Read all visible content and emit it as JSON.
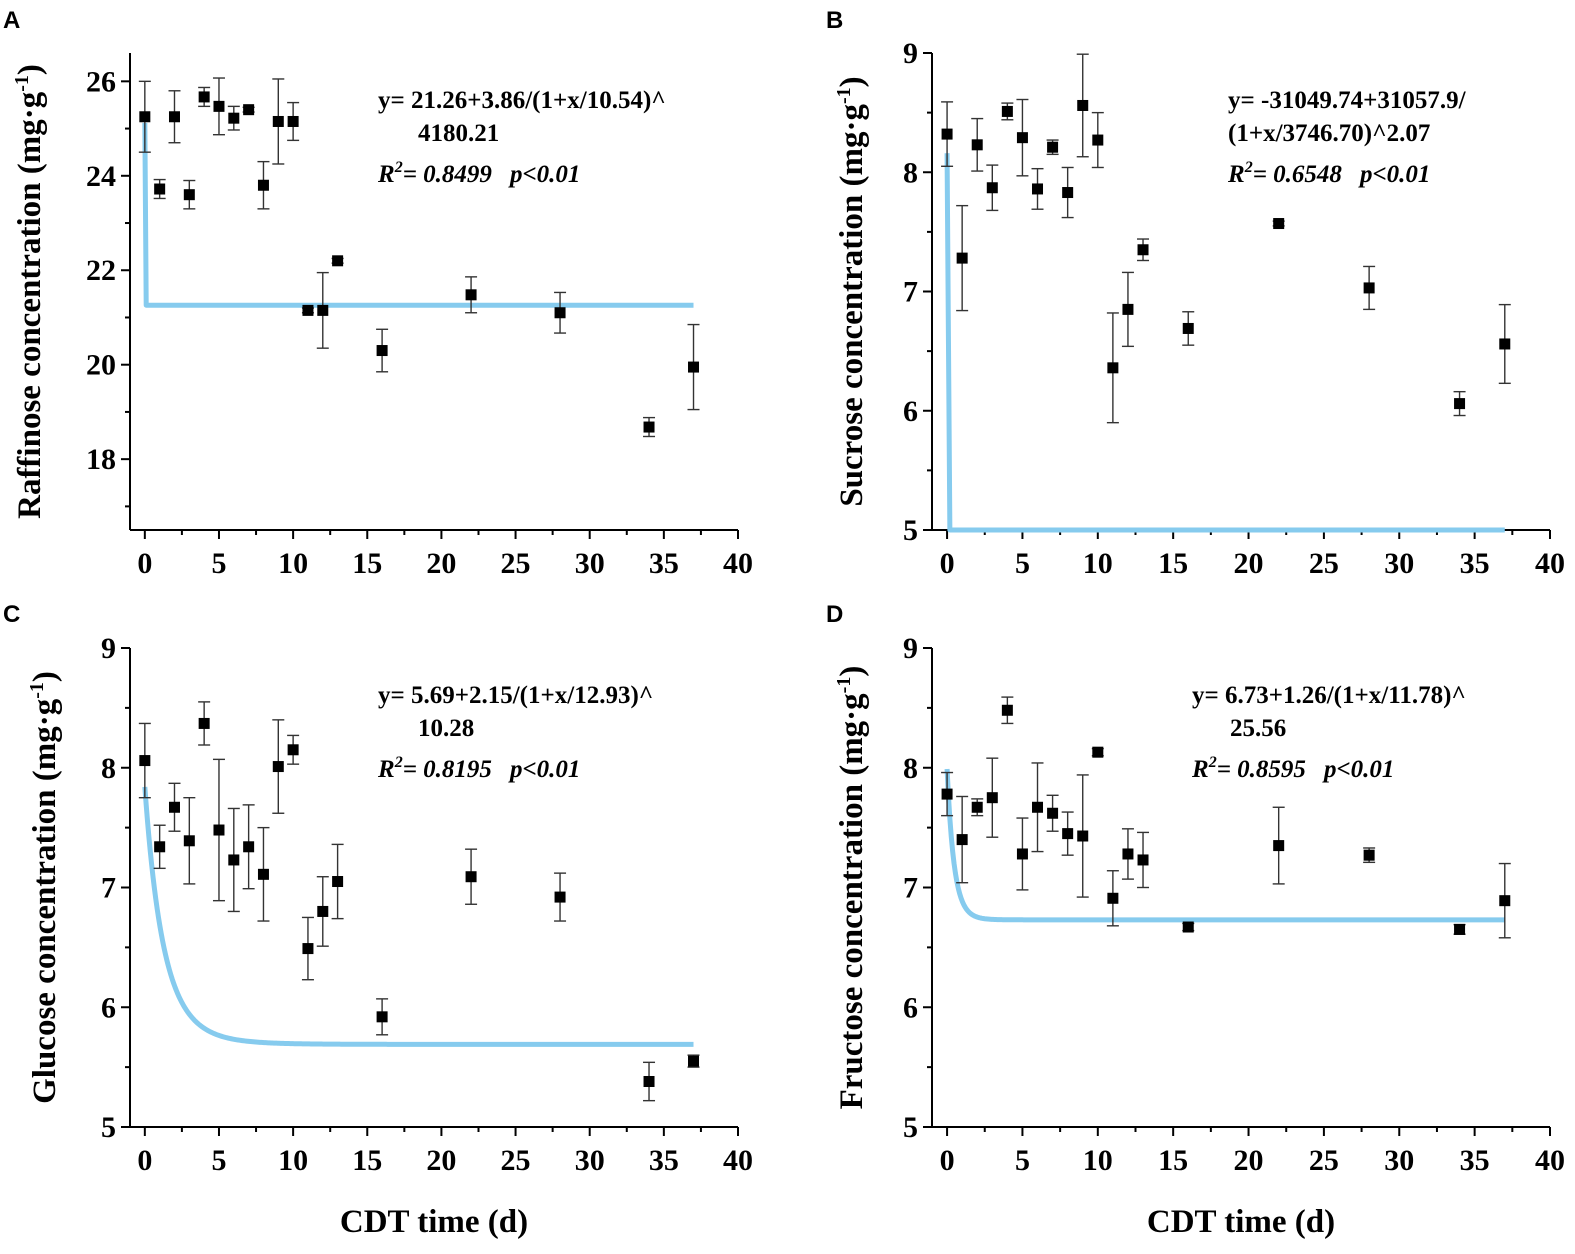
{
  "chart_data": [
    {
      "type": "scatter",
      "panel": "A",
      "ylabel": "Raffinose concentration (mg·g",
      "ylabel_sup": "-1",
      "ylabel_end": ")",
      "xlabel": "",
      "xlim": [
        -1,
        40
      ],
      "ylim": [
        16.5,
        26.6
      ],
      "xticks": [
        0,
        5,
        10,
        15,
        20,
        25,
        30,
        35,
        40
      ],
      "yticks": [
        18,
        20,
        22,
        24,
        26
      ],
      "xtick_labels": [
        "0",
        "5",
        "10",
        "15",
        "20",
        "25",
        "30",
        "35",
        "40"
      ],
      "ytick_labels": [
        "18",
        "20",
        "22",
        "24",
        "26"
      ],
      "fit_color": "#86cbee",
      "equation_line1": "y= 21.26+3.86/(1+x/10.54)^",
      "equation_line2": "4180.21",
      "r2_label": "R",
      "r2_sup": "2",
      "r2_value": "= 0.8499",
      "p_value": "p<0.01",
      "fit": {
        "A": 21.26,
        "B": 3.86,
        "c": 10.54,
        "n": 4180.21,
        "xmax": 37
      },
      "points": [
        {
          "x": 0,
          "y": 25.25,
          "err": 0.75
        },
        {
          "x": 1,
          "y": 23.72,
          "err": 0.2
        },
        {
          "x": 2,
          "y": 25.25,
          "err": 0.55
        },
        {
          "x": 3,
          "y": 23.6,
          "err": 0.3
        },
        {
          "x": 4,
          "y": 25.67,
          "err": 0.2
        },
        {
          "x": 5,
          "y": 25.47,
          "err": 0.6
        },
        {
          "x": 6,
          "y": 25.22,
          "err": 0.25
        },
        {
          "x": 7,
          "y": 25.4,
          "err": 0.05
        },
        {
          "x": 8,
          "y": 23.8,
          "err": 0.5
        },
        {
          "x": 9,
          "y": 25.15,
          "err": 0.9
        },
        {
          "x": 10,
          "y": 25.15,
          "err": 0.4
        },
        {
          "x": 11,
          "y": 21.15,
          "err": 0.05
        },
        {
          "x": 12,
          "y": 21.15,
          "err": 0.8
        },
        {
          "x": 13,
          "y": 22.2,
          "err": 0.05
        },
        {
          "x": 16,
          "y": 20.3,
          "err": 0.45
        },
        {
          "x": 22,
          "y": 21.48,
          "err": 0.38
        },
        {
          "x": 28,
          "y": 21.1,
          "err": 0.43
        },
        {
          "x": 34,
          "y": 18.68,
          "err": 0.2
        },
        {
          "x": 37,
          "y": 19.95,
          "err": 0.9
        }
      ]
    },
    {
      "type": "scatter",
      "panel": "B",
      "ylabel": "Sucrose concentration (mg·g",
      "ylabel_sup": "-1",
      "ylabel_end": ")",
      "xlabel": "",
      "xlim": [
        -1,
        40
      ],
      "ylim": [
        5,
        9
      ],
      "xticks": [
        0,
        5,
        10,
        15,
        20,
        25,
        30,
        35,
        40
      ],
      "yticks": [
        5,
        6,
        7,
        8,
        9
      ],
      "xtick_labels": [
        "0",
        "5",
        "10",
        "15",
        "20",
        "25",
        "30",
        "35",
        "40"
      ],
      "ytick_labels": [
        "5",
        "6",
        "7",
        "8",
        "9"
      ],
      "fit_color": "#86cbee",
      "equation_line1": "y= -31049.74+31057.9/",
      "equation_line2": "(1+x/3746.70)^2.07",
      "r2_label": "R",
      "r2_sup": "2",
      "r2_value": "= 0.6548",
      "p_value": "p<0.01",
      "fit": {
        "A": -31049.74,
        "B": 31057.9,
        "c": 3746.7,
        "n": 2.07,
        "xmax": 37
      },
      "points": [
        {
          "x": 0,
          "y": 8.32,
          "err": 0.27
        },
        {
          "x": 1,
          "y": 7.28,
          "err": 0.44
        },
        {
          "x": 2,
          "y": 8.23,
          "err": 0.22
        },
        {
          "x": 3,
          "y": 7.87,
          "err": 0.19
        },
        {
          "x": 4,
          "y": 8.51,
          "err": 0.07
        },
        {
          "x": 5,
          "y": 8.29,
          "err": 0.32
        },
        {
          "x": 6,
          "y": 7.86,
          "err": 0.17
        },
        {
          "x": 7,
          "y": 8.21,
          "err": 0.06
        },
        {
          "x": 8,
          "y": 7.83,
          "err": 0.21
        },
        {
          "x": 9,
          "y": 8.56,
          "err": 0.43
        },
        {
          "x": 10,
          "y": 8.27,
          "err": 0.23
        },
        {
          "x": 11,
          "y": 6.36,
          "err": 0.46
        },
        {
          "x": 12,
          "y": 6.85,
          "err": 0.31
        },
        {
          "x": 13,
          "y": 7.35,
          "err": 0.09
        },
        {
          "x": 16,
          "y": 6.69,
          "err": 0.14
        },
        {
          "x": 22,
          "y": 7.57,
          "err": 0.02
        },
        {
          "x": 28,
          "y": 7.03,
          "err": 0.18
        },
        {
          "x": 34,
          "y": 6.06,
          "err": 0.1
        },
        {
          "x": 37,
          "y": 6.56,
          "err": 0.33
        }
      ]
    },
    {
      "type": "scatter",
      "panel": "C",
      "ylabel": "Glucose concentration (mg·g",
      "ylabel_sup": "-1",
      "ylabel_end": ")",
      "xlabel": "CDT time (d)",
      "xlim": [
        -1,
        40
      ],
      "ylim": [
        5,
        9
      ],
      "xticks": [
        0,
        5,
        10,
        15,
        20,
        25,
        30,
        35,
        40
      ],
      "yticks": [
        5,
        6,
        7,
        8,
        9
      ],
      "xtick_labels": [
        "0",
        "5",
        "10",
        "15",
        "20",
        "25",
        "30",
        "35",
        "40"
      ],
      "ytick_labels": [
        "5",
        "6",
        "7",
        "8",
        "9"
      ],
      "fit_color": "#86cbee",
      "equation_line1": "y= 5.69+2.15/(1+x/12.93)^",
      "equation_line2": "10.28",
      "r2_label": "R",
      "r2_sup": "2",
      "r2_value": "= 0.8195",
      "p_value": "p<0.01",
      "fit": {
        "A": 5.69,
        "B": 2.15,
        "c": 12.93,
        "n": 10.28,
        "xmax": 37
      },
      "points": [
        {
          "x": 0,
          "y": 8.06,
          "err": 0.31
        },
        {
          "x": 1,
          "y": 7.34,
          "err": 0.18
        },
        {
          "x": 2,
          "y": 7.67,
          "err": 0.2
        },
        {
          "x": 3,
          "y": 7.39,
          "err": 0.36
        },
        {
          "x": 4,
          "y": 8.37,
          "err": 0.18
        },
        {
          "x": 5,
          "y": 7.48,
          "err": 0.59
        },
        {
          "x": 6,
          "y": 7.23,
          "err": 0.43
        },
        {
          "x": 7,
          "y": 7.34,
          "err": 0.35
        },
        {
          "x": 8,
          "y": 7.11,
          "err": 0.39
        },
        {
          "x": 9,
          "y": 8.01,
          "err": 0.39
        },
        {
          "x": 10,
          "y": 8.15,
          "err": 0.12
        },
        {
          "x": 11,
          "y": 6.49,
          "err": 0.26
        },
        {
          "x": 12,
          "y": 6.8,
          "err": 0.29
        },
        {
          "x": 13,
          "y": 7.05,
          "err": 0.31
        },
        {
          "x": 16,
          "y": 5.92,
          "err": 0.15
        },
        {
          "x": 22,
          "y": 7.09,
          "err": 0.23
        },
        {
          "x": 28,
          "y": 6.92,
          "err": 0.2
        },
        {
          "x": 34,
          "y": 5.38,
          "err": 0.16
        },
        {
          "x": 37,
          "y": 5.55,
          "err": 0.05
        }
      ]
    },
    {
      "type": "scatter",
      "panel": "D",
      "ylabel": "Fructose concentration (mg·g",
      "ylabel_sup": "-1",
      "ylabel_end": ")",
      "xlabel": "CDT time (d)",
      "xlim": [
        -1,
        40
      ],
      "ylim": [
        5,
        9
      ],
      "xticks": [
        0,
        5,
        10,
        15,
        20,
        25,
        30,
        35,
        40
      ],
      "yticks": [
        5,
        6,
        7,
        8,
        9
      ],
      "xtick_labels": [
        "0",
        "5",
        "10",
        "15",
        "20",
        "25",
        "30",
        "35",
        "40"
      ],
      "ytick_labels": [
        "5",
        "6",
        "7",
        "8",
        "9"
      ],
      "fit_color": "#86cbee",
      "equation_line1": "y= 6.73+1.26/(1+x/11.78)^",
      "equation_line2": "25.56",
      "r2_label": "R",
      "r2_sup": "2",
      "r2_value": "= 0.8595",
      "p_value": "p<0.01",
      "fit": {
        "A": 6.73,
        "B": 1.26,
        "c": 11.78,
        "n": 25.56,
        "xmax": 37
      },
      "points": [
        {
          "x": 0,
          "y": 7.78,
          "err": 0.18
        },
        {
          "x": 1,
          "y": 7.4,
          "err": 0.36
        },
        {
          "x": 2,
          "y": 7.67,
          "err": 0.07
        },
        {
          "x": 3,
          "y": 7.75,
          "err": 0.33
        },
        {
          "x": 4,
          "y": 8.48,
          "err": 0.11
        },
        {
          "x": 5,
          "y": 7.28,
          "err": 0.3
        },
        {
          "x": 6,
          "y": 7.67,
          "err": 0.37
        },
        {
          "x": 7,
          "y": 7.62,
          "err": 0.15
        },
        {
          "x": 8,
          "y": 7.45,
          "err": 0.18
        },
        {
          "x": 9,
          "y": 7.43,
          "err": 0.51
        },
        {
          "x": 10,
          "y": 8.13,
          "err": 0.03
        },
        {
          "x": 11,
          "y": 6.91,
          "err": 0.23
        },
        {
          "x": 12,
          "y": 7.28,
          "err": 0.21
        },
        {
          "x": 13,
          "y": 7.23,
          "err": 0.23
        },
        {
          "x": 16,
          "y": 6.67,
          "err": 0.03
        },
        {
          "x": 22,
          "y": 7.35,
          "err": 0.32
        },
        {
          "x": 28,
          "y": 7.27,
          "err": 0.06
        },
        {
          "x": 34,
          "y": 6.65,
          "err": 0.04
        },
        {
          "x": 37,
          "y": 6.89,
          "err": 0.31
        }
      ]
    }
  ]
}
